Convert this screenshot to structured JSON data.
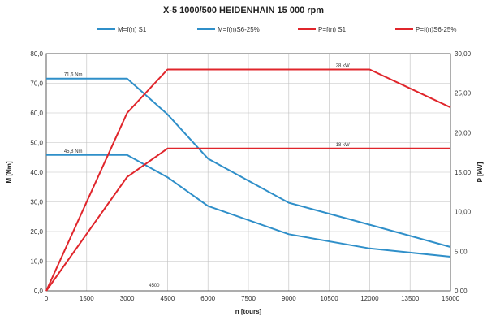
{
  "chart_data": {
    "type": "line",
    "title": "X-5 1000/500 HEIDENHAIN 15 000 rpm",
    "xlabel": "n [tours]",
    "ylabel_left": "M [Nm]",
    "ylabel_right": "P [kW]",
    "xlim": [
      0,
      15000
    ],
    "ylim_left": [
      0,
      80
    ],
    "ylim_right": [
      0,
      30
    ],
    "x_ticks": [
      "0",
      "1500",
      "3000",
      "4500",
      "6000",
      "7500",
      "9000",
      "10500",
      "12000",
      "13500",
      "15000"
    ],
    "y_left_ticks": [
      "0,0",
      "10,0",
      "20,0",
      "30,0",
      "40,0",
      "50,0",
      "60,0",
      "70,0",
      "80,0"
    ],
    "y_right_ticks": [
      "0,00",
      "5,00",
      "10,00",
      "15,00",
      "20,00",
      "25,00",
      "30,00"
    ],
    "grid": true,
    "legend_position": "top",
    "series": [
      {
        "name": "M=f(n) S1",
        "axis": "left",
        "color": "#2f8fc9",
        "x": [
          0,
          3000,
          4500,
          6000,
          9000,
          12000,
          15000
        ],
        "y": [
          45.8,
          45.8,
          38.3,
          28.6,
          19.1,
          14.3,
          11.5
        ]
      },
      {
        "name": "M=f(n)S6-25%",
        "axis": "left",
        "color": "#2f8fc9",
        "x": [
          0,
          3000,
          4500,
          6000,
          9000,
          12000,
          15000
        ],
        "y": [
          71.6,
          71.6,
          59.5,
          44.6,
          29.7,
          22.3,
          14.8
        ]
      },
      {
        "name": "P=f(n) S1",
        "axis": "right",
        "color": "#e0252b",
        "x": [
          0,
          3000,
          4500,
          15000
        ],
        "y": [
          0,
          14.4,
          18,
          18
        ]
      },
      {
        "name": "P=f(n)S6-25%",
        "axis": "right",
        "color": "#e0252b",
        "x": [
          0,
          3000,
          4500,
          12000,
          15000
        ],
        "y": [
          0,
          22.5,
          28,
          28,
          23.2
        ]
      }
    ],
    "annotations": [
      {
        "text": "71,6 Nm",
        "x": 1000,
        "y": 71.6,
        "axis": "left",
        "color": "#2f5fa8"
      },
      {
        "text": "45,8 Nm",
        "x": 1000,
        "y": 45.8,
        "axis": "left",
        "color": "#2f5fa8"
      },
      {
        "text": "28 kW",
        "x": 11000,
        "y": 28,
        "axis": "right",
        "color": "#333333"
      },
      {
        "text": "18 kW",
        "x": 11000,
        "y": 18,
        "axis": "right",
        "color": "#333333"
      },
      {
        "text": "4500",
        "x": 4000,
        "y": 0.5,
        "axis": "left",
        "color": "#e8a33a"
      }
    ]
  }
}
